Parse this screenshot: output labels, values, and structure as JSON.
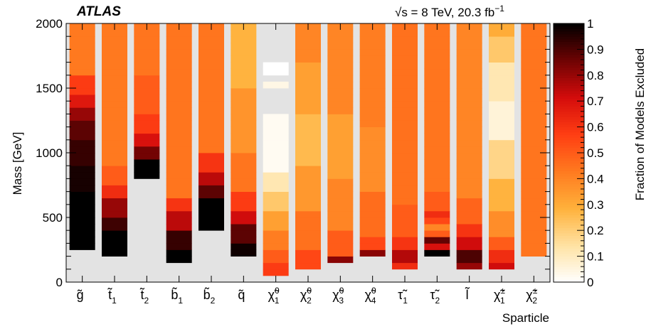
{
  "chart_data": {
    "type": "heatmap",
    "title": "ATLAS",
    "energy_label": "√s = 8 TeV, 20.3 fb",
    "energy_superscript": "−1",
    "xlabel": "Sparticle",
    "ylabel": "Mass [GeV]",
    "colorbar_label": "Fraction of Models Excluded",
    "ylim": [
      0,
      2000
    ],
    "colorbar_range": [
      0,
      1
    ],
    "y_ticks": [
      0,
      500,
      1000,
      1500,
      2000
    ],
    "colorbar_ticks": [
      "0",
      "0.1",
      "0.2",
      "0.3",
      "0.4",
      "0.5",
      "0.6",
      "0.7",
      "0.8",
      "0.9",
      "1"
    ],
    "bin_width": 50,
    "background_color": "#e3e3e3",
    "colorscale": [
      "#ffffff",
      "#ffe2a3",
      "#ffb13b",
      "#ff7a1f",
      "#ff3e13",
      "#d40c0c",
      "#6e0303",
      "#000000"
    ],
    "categories": [
      {
        "label": "g̃",
        "sub": "",
        "sup": "",
        "mass_min": 250,
        "segments": [
          {
            "to": 700,
            "v": 1.0
          },
          {
            "to": 900,
            "v": 0.97
          },
          {
            "to": 1100,
            "v": 0.93
          },
          {
            "to": 1250,
            "v": 0.88
          },
          {
            "to": 1350,
            "v": 0.8
          },
          {
            "to": 1450,
            "v": 0.68
          },
          {
            "to": 1600,
            "v": 0.58
          },
          {
            "to": 2000,
            "v": 0.43
          }
        ]
      },
      {
        "label": "t̃",
        "sub": "1",
        "sup": "",
        "mass_min": 200,
        "segments": [
          {
            "to": 400,
            "v": 1.0
          },
          {
            "to": 500,
            "v": 0.92
          },
          {
            "to": 650,
            "v": 0.8
          },
          {
            "to": 750,
            "v": 0.62
          },
          {
            "to": 900,
            "v": 0.5
          },
          {
            "to": 2000,
            "v": 0.43
          }
        ]
      },
      {
        "label": "t̃",
        "sub": "2",
        "sup": "",
        "mass_min": 800,
        "segments": [
          {
            "to": 950,
            "v": 1.0
          },
          {
            "to": 1050,
            "v": 0.85
          },
          {
            "to": 1150,
            "v": 0.7
          },
          {
            "to": 1300,
            "v": 0.58
          },
          {
            "to": 1600,
            "v": 0.5
          },
          {
            "to": 2000,
            "v": 0.44
          }
        ]
      },
      {
        "label": "b̃",
        "sub": "1",
        "sup": "",
        "mass_min": 150,
        "segments": [
          {
            "to": 250,
            "v": 1.0
          },
          {
            "to": 400,
            "v": 0.93
          },
          {
            "to": 550,
            "v": 0.75
          },
          {
            "to": 650,
            "v": 0.6
          },
          {
            "to": 2000,
            "v": 0.44
          }
        ]
      },
      {
        "label": "b̃",
        "sub": "2",
        "sup": "",
        "mass_min": 400,
        "segments": [
          {
            "to": 650,
            "v": 1.0
          },
          {
            "to": 750,
            "v": 0.88
          },
          {
            "to": 850,
            "v": 0.75
          },
          {
            "to": 1000,
            "v": 0.6
          },
          {
            "to": 2000,
            "v": 0.44
          }
        ]
      },
      {
        "label": "q̃",
        "sub": "",
        "sup": "",
        "mass_min": 200,
        "segments": [
          {
            "to": 300,
            "v": 0.98
          },
          {
            "to": 450,
            "v": 0.88
          },
          {
            "to": 550,
            "v": 0.72
          },
          {
            "to": 700,
            "v": 0.58
          },
          {
            "to": 1000,
            "v": 0.44
          },
          {
            "to": 1500,
            "v": 0.36
          },
          {
            "to": 2000,
            "v": 0.28
          }
        ]
      },
      {
        "label": "χ̃",
        "sub": "1",
        "sup": "0",
        "mass_min": 50,
        "segments": [
          {
            "to": 150,
            "v": 0.58
          },
          {
            "to": 250,
            "v": 0.5
          },
          {
            "to": 400,
            "v": 0.42
          },
          {
            "to": 550,
            "v": 0.33
          },
          {
            "to": 700,
            "v": 0.22
          },
          {
            "to": 850,
            "v": 0.12
          },
          {
            "to": 1300,
            "v": 0.02
          },
          {
            "to": 1500,
            "v": -1
          },
          {
            "to": 1550,
            "v": 0.04
          },
          {
            "to": 1600,
            "v": -1
          },
          {
            "to": 1700,
            "v": 0.0
          },
          {
            "to": 2000,
            "v": -1
          }
        ]
      },
      {
        "label": "χ̃",
        "sub": "2",
        "sup": "0",
        "mass_min": 100,
        "segments": [
          {
            "to": 250,
            "v": 0.55
          },
          {
            "to": 550,
            "v": 0.45
          },
          {
            "to": 900,
            "v": 0.35
          },
          {
            "to": 1300,
            "v": 0.26
          },
          {
            "to": 1700,
            "v": 0.33
          },
          {
            "to": 2000,
            "v": 0.4
          }
        ]
      },
      {
        "label": "χ̃",
        "sub": "3",
        "sup": "0",
        "mass_min": 150,
        "segments": [
          {
            "to": 200,
            "v": 0.82
          },
          {
            "to": 400,
            "v": 0.5
          },
          {
            "to": 800,
            "v": 0.4
          },
          {
            "to": 1300,
            "v": 0.33
          },
          {
            "to": 2000,
            "v": 0.4
          }
        ]
      },
      {
        "label": "χ̃",
        "sub": "4",
        "sup": "0",
        "mass_min": 200,
        "segments": [
          {
            "to": 250,
            "v": 0.82
          },
          {
            "to": 350,
            "v": 0.55
          },
          {
            "to": 700,
            "v": 0.46
          },
          {
            "to": 1200,
            "v": 0.38
          },
          {
            "to": 2000,
            "v": 0.42
          }
        ]
      },
      {
        "label": "τ̃",
        "sub": "1",
        "sup": "",
        "mass_min": 100,
        "segments": [
          {
            "to": 150,
            "v": 0.62
          },
          {
            "to": 250,
            "v": 0.76
          },
          {
            "to": 350,
            "v": 0.6
          },
          {
            "to": 600,
            "v": 0.5
          },
          {
            "to": 2000,
            "v": 0.45
          }
        ]
      },
      {
        "label": "τ̃",
        "sub": "2",
        "sup": "",
        "mass_min": 200,
        "segments": [
          {
            "to": 250,
            "v": 1.0
          },
          {
            "to": 300,
            "v": 0.7
          },
          {
            "to": 350,
            "v": 0.87
          },
          {
            "to": 400,
            "v": 0.5
          },
          {
            "to": 450,
            "v": 0.4
          },
          {
            "to": 500,
            "v": 0.55
          },
          {
            "to": 550,
            "v": 0.62
          },
          {
            "to": 700,
            "v": 0.5
          },
          {
            "to": 2000,
            "v": 0.44
          }
        ]
      },
      {
        "label": "l̃",
        "sub": "",
        "sup": "",
        "mass_min": 100,
        "segments": [
          {
            "to": 150,
            "v": 0.8
          },
          {
            "to": 250,
            "v": 0.9
          },
          {
            "to": 350,
            "v": 0.72
          },
          {
            "to": 450,
            "v": 0.6
          },
          {
            "to": 650,
            "v": 0.48
          },
          {
            "to": 2000,
            "v": 0.4
          }
        ]
      },
      {
        "label": "χ̃",
        "sub": "1",
        "sup": "±",
        "mass_min": 100,
        "segments": [
          {
            "to": 150,
            "v": 0.72
          },
          {
            "to": 250,
            "v": 0.62
          },
          {
            "to": 350,
            "v": 0.5
          },
          {
            "to": 550,
            "v": 0.38
          },
          {
            "to": 800,
            "v": 0.28
          },
          {
            "to": 1100,
            "v": 0.18
          },
          {
            "to": 1400,
            "v": 0.06
          },
          {
            "to": 1700,
            "v": 0.12
          },
          {
            "to": 1900,
            "v": 0.22
          },
          {
            "to": 2000,
            "v": 0.3
          }
        ]
      },
      {
        "label": "χ̃",
        "sub": "2",
        "sup": "±",
        "mass_min": 200,
        "segments": [
          {
            "to": 2000,
            "v": 0.44
          }
        ]
      }
    ]
  }
}
